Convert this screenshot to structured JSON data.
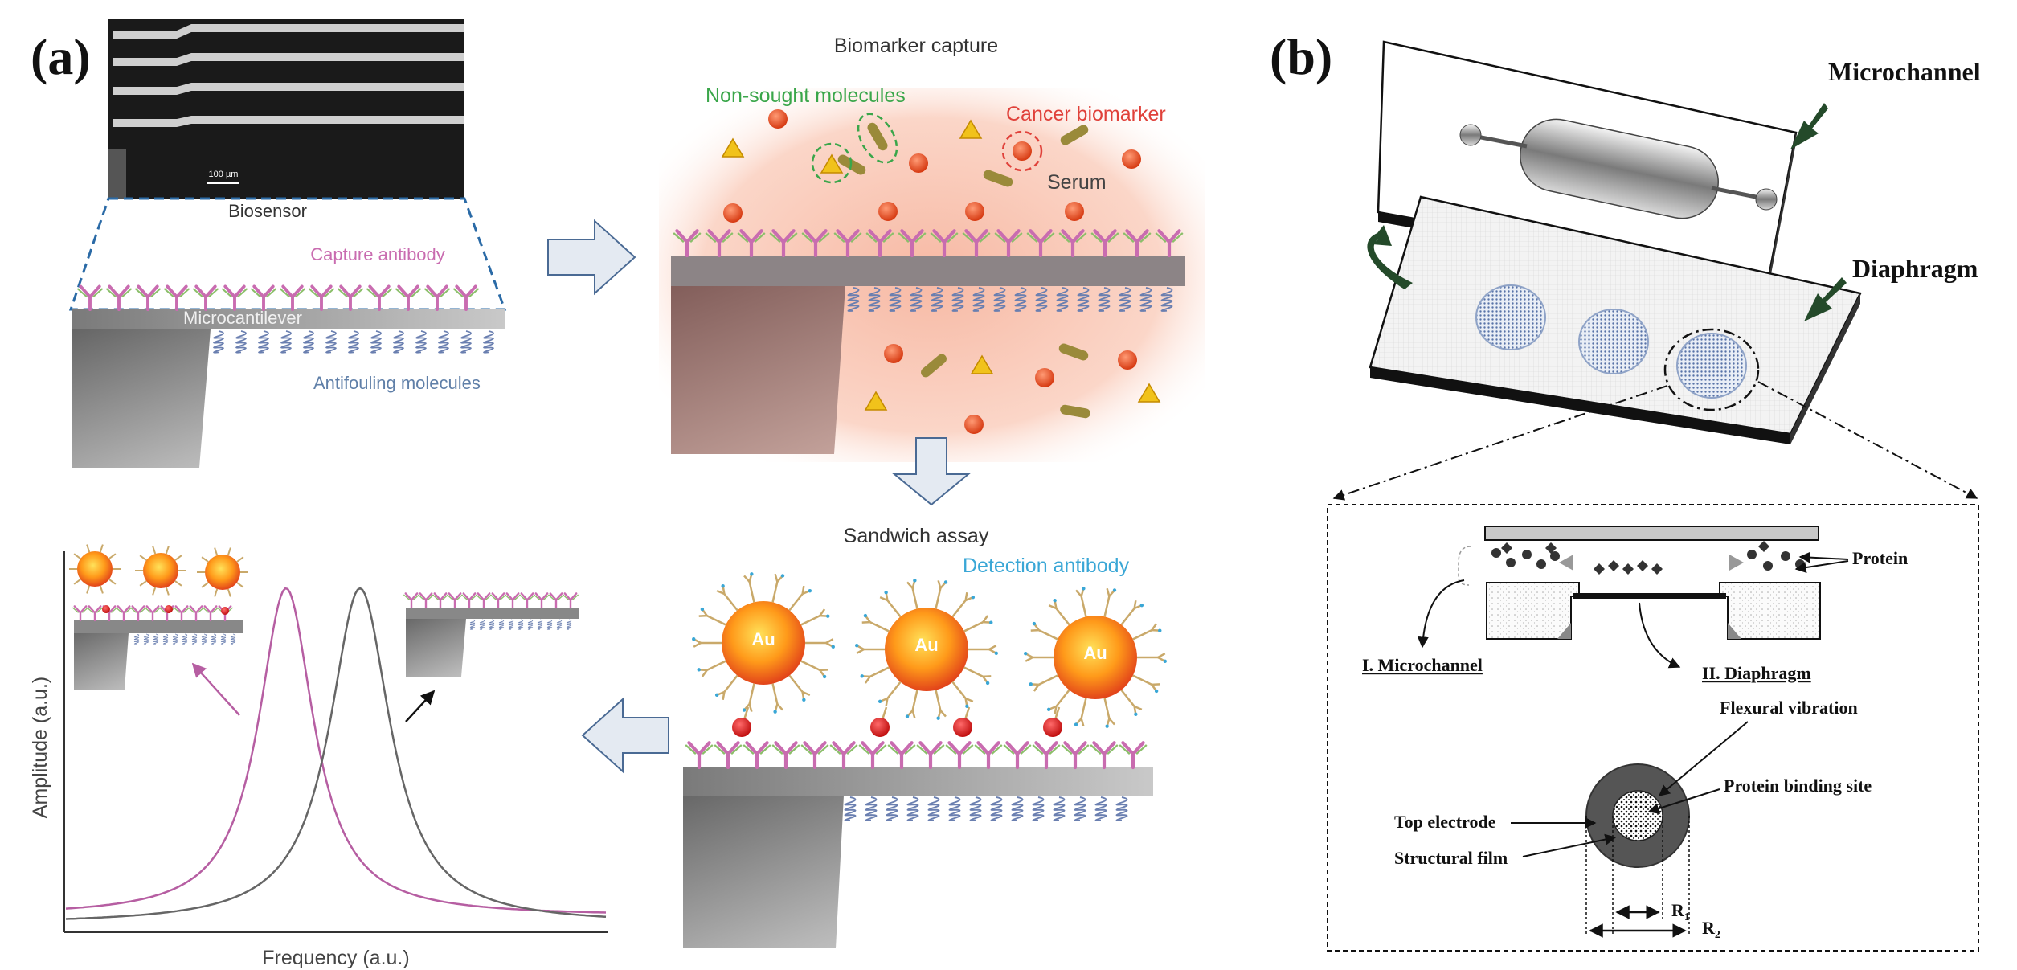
{
  "panel_a": {
    "letter": "(a)",
    "sem_scale": "100 µm",
    "biosensor": "Biosensor",
    "capture_antibody": "Capture antibody",
    "microcantilever": "Microcantilever",
    "antifouling": "Antifouling molecules",
    "biomarker_capture": "Biomarker capture",
    "non_sought": "Non-sought molecules",
    "cancer_biomarker": "Cancer biomarker",
    "serum": "Serum",
    "sandwich_assay": "Sandwich assay",
    "detection_antibody": "Detection antibody",
    "au": "Au",
    "ylabel": "Amplitude (a.u.)",
    "xlabel": "Frequency (a.u.)",
    "colors": {
      "capture_label": "#c96cb0",
      "antifouling_label": "#5f7fa8",
      "non_sought_label": "#3aa64a",
      "cancer_label": "#e0413a",
      "detection_label": "#3aa7d6",
      "curve_shifted": "#b65ea2",
      "curve_original": "#666666"
    }
  },
  "panel_b": {
    "letter": "(b)",
    "microchannel": "Microchannel",
    "diaphragm": "Diaphragm",
    "protein": "Protein",
    "i_microchannel": "I. Microchannel",
    "ii_diaphragm": "II. Diaphragm",
    "flexural_vibration": "Flexural vibration",
    "protein_binding_site": "Protein binding site",
    "top_electrode": "Top electrode",
    "structural_film": "Structural film",
    "r1": "R",
    "r1_sub": "1",
    "r2": "R",
    "r2_sub": "2"
  }
}
